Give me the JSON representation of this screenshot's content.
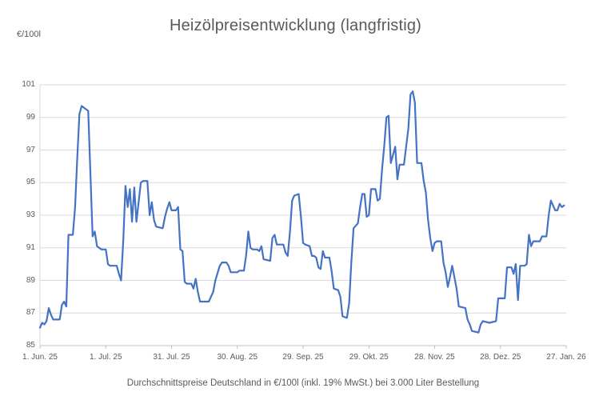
{
  "title": "Heizölpreisentwicklung (langfristig)",
  "y_axis_unit_label": "€/100l",
  "caption": "Durchschnittspreise Deutschland in €/100l (inkl. 19% MwSt.) bei 3.000 Liter Bestellung",
  "colors": {
    "line": "#4472C4",
    "gridline": "#D9D9D9",
    "axis": "#BFBFBF",
    "text": "#595959",
    "background": "#FFFFFF"
  },
  "chart_data": {
    "type": "line",
    "title": "Heizölpreisentwicklung (langfristig)",
    "ylabel": "€/100l",
    "xlabel": "",
    "unit": "€/100l",
    "ylim": [
      85,
      101
    ],
    "y_ticks": [
      101,
      99,
      97,
      95,
      93,
      91,
      89,
      87,
      85
    ],
    "x_tick_labels": [
      "1. Jun. 25",
      "1. Jul. 25",
      "31. Jul. 25",
      "30. Aug. 25",
      "29. Sep. 25",
      "29. Okt. 25",
      "28. Nov. 25",
      "28. Dez. 25",
      "27. Jan. 26"
    ],
    "x_tick_days": [
      0,
      30,
      60,
      90,
      120,
      150,
      180,
      210,
      240
    ],
    "x_range_days": [
      0,
      240
    ],
    "grid": "horizontal",
    "legend": "none",
    "series": [
      {
        "points": [
          [
            0,
            86.1
          ],
          [
            1,
            86.4
          ],
          [
            2,
            86.3
          ],
          [
            3,
            86.5
          ],
          [
            4,
            87.3
          ],
          [
            5,
            86.9
          ],
          [
            6,
            86.6
          ],
          [
            9,
            86.6
          ],
          [
            10,
            87.5
          ],
          [
            11,
            87.7
          ],
          [
            12,
            87.4
          ],
          [
            13,
            91.8
          ],
          [
            15,
            91.8
          ],
          [
            16,
            93.5
          ],
          [
            17,
            96.5
          ],
          [
            18,
            99.2
          ],
          [
            19,
            99.7
          ],
          [
            20,
            99.6
          ],
          [
            22,
            99.4
          ],
          [
            23,
            95.5
          ],
          [
            24,
            91.7
          ],
          [
            25,
            92.0
          ],
          [
            26,
            91.1
          ],
          [
            27,
            91.0
          ],
          [
            28,
            90.9
          ],
          [
            30,
            90.9
          ],
          [
            31,
            90.0
          ],
          [
            32,
            89.9
          ],
          [
            35,
            89.9
          ],
          [
            36,
            89.4
          ],
          [
            37,
            89.0
          ],
          [
            38,
            91.5
          ],
          [
            39,
            94.8
          ],
          [
            40,
            93.5
          ],
          [
            41,
            94.6
          ],
          [
            42,
            92.6
          ],
          [
            43,
            94.7
          ],
          [
            44,
            92.6
          ],
          [
            46,
            95.0
          ],
          [
            47,
            95.1
          ],
          [
            49,
            95.1
          ],
          [
            50,
            93.0
          ],
          [
            51,
            93.8
          ],
          [
            52,
            92.7
          ],
          [
            53,
            92.3
          ],
          [
            56,
            92.2
          ],
          [
            57,
            92.9
          ],
          [
            58,
            93.4
          ],
          [
            59,
            93.8
          ],
          [
            60,
            93.3
          ],
          [
            62,
            93.3
          ],
          [
            63,
            93.5
          ],
          [
            64,
            90.9
          ],
          [
            65,
            90.8
          ],
          [
            66,
            88.9
          ],
          [
            67,
            88.8
          ],
          [
            69,
            88.8
          ],
          [
            70,
            88.5
          ],
          [
            71,
            89.1
          ],
          [
            72,
            88.3
          ],
          [
            73,
            87.7
          ],
          [
            77,
            87.7
          ],
          [
            79,
            88.3
          ],
          [
            80,
            89.0
          ],
          [
            82,
            89.9
          ],
          [
            83,
            90.1
          ],
          [
            85,
            90.1
          ],
          [
            86,
            89.9
          ],
          [
            87,
            89.5
          ],
          [
            90,
            89.5
          ],
          [
            91,
            89.6
          ],
          [
            93,
            89.6
          ],
          [
            94,
            90.5
          ],
          [
            95,
            92.0
          ],
          [
            96,
            91.0
          ],
          [
            97,
            90.9
          ],
          [
            99,
            90.9
          ],
          [
            100,
            90.8
          ],
          [
            101,
            91.1
          ],
          [
            102,
            90.3
          ],
          [
            105,
            90.2
          ],
          [
            106,
            91.6
          ],
          [
            107,
            91.8
          ],
          [
            108,
            91.2
          ],
          [
            111,
            91.2
          ],
          [
            112,
            90.7
          ],
          [
            113,
            90.5
          ],
          [
            114,
            92.0
          ],
          [
            115,
            93.9
          ],
          [
            116,
            94.2
          ],
          [
            118,
            94.3
          ],
          [
            119,
            92.9
          ],
          [
            120,
            91.3
          ],
          [
            121,
            91.2
          ],
          [
            123,
            91.1
          ],
          [
            124,
            90.5
          ],
          [
            125,
            90.5
          ],
          [
            126,
            90.4
          ],
          [
            127,
            89.8
          ],
          [
            128,
            89.7
          ],
          [
            129,
            90.8
          ],
          [
            130,
            90.4
          ],
          [
            132,
            90.4
          ],
          [
            133,
            89.6
          ],
          [
            134,
            88.5
          ],
          [
            136,
            88.4
          ],
          [
            137,
            88.0
          ],
          [
            138,
            86.8
          ],
          [
            140,
            86.7
          ],
          [
            141,
            87.6
          ],
          [
            142,
            90.1
          ],
          [
            143,
            92.2
          ],
          [
            145,
            92.5
          ],
          [
            146,
            93.5
          ],
          [
            147,
            94.3
          ],
          [
            148,
            94.3
          ],
          [
            149,
            92.9
          ],
          [
            150,
            93.0
          ],
          [
            151,
            94.6
          ],
          [
            153,
            94.6
          ],
          [
            154,
            93.9
          ],
          [
            155,
            94.0
          ],
          [
            156,
            95.8
          ],
          [
            157,
            97.2
          ],
          [
            158,
            99.0
          ],
          [
            159,
            99.1
          ],
          [
            160,
            96.2
          ],
          [
            162,
            97.2
          ],
          [
            163,
            95.2
          ],
          [
            164,
            96.1
          ],
          [
            166,
            96.1
          ],
          [
            168,
            98.3
          ],
          [
            169,
            100.4
          ],
          [
            170,
            100.6
          ],
          [
            171,
            99.9
          ],
          [
            172,
            96.2
          ],
          [
            174,
            96.2
          ],
          [
            175,
            95.1
          ],
          [
            176,
            94.4
          ],
          [
            177,
            92.7
          ],
          [
            178,
            91.6
          ],
          [
            179,
            90.8
          ],
          [
            180,
            91.3
          ],
          [
            181,
            91.4
          ],
          [
            183,
            91.4
          ],
          [
            184,
            90.1
          ],
          [
            185,
            89.5
          ],
          [
            186,
            88.6
          ],
          [
            187,
            89.2
          ],
          [
            188,
            89.9
          ],
          [
            189,
            89.2
          ],
          [
            190,
            88.5
          ],
          [
            191,
            87.4
          ],
          [
            194,
            87.3
          ],
          [
            195,
            86.6
          ],
          [
            196,
            86.3
          ],
          [
            197,
            85.9
          ],
          [
            200,
            85.8
          ],
          [
            201,
            86.3
          ],
          [
            202,
            86.5
          ],
          [
            205,
            86.4
          ],
          [
            208,
            86.5
          ],
          [
            209,
            87.9
          ],
          [
            212,
            87.9
          ],
          [
            213,
            89.8
          ],
          [
            215,
            89.8
          ],
          [
            216,
            89.4
          ],
          [
            217,
            90.0
          ],
          [
            218,
            87.8
          ],
          [
            219,
            89.9
          ],
          [
            221,
            89.9
          ],
          [
            222,
            90.0
          ],
          [
            223,
            91.8
          ],
          [
            224,
            91.1
          ],
          [
            225,
            91.4
          ],
          [
            228,
            91.4
          ],
          [
            229,
            91.7
          ],
          [
            231,
            91.7
          ],
          [
            232,
            93.0
          ],
          [
            233,
            93.9
          ],
          [
            235,
            93.3
          ],
          [
            236,
            93.3
          ],
          [
            237,
            93.7
          ],
          [
            238,
            93.5
          ],
          [
            239,
            93.6
          ]
        ]
      }
    ]
  }
}
